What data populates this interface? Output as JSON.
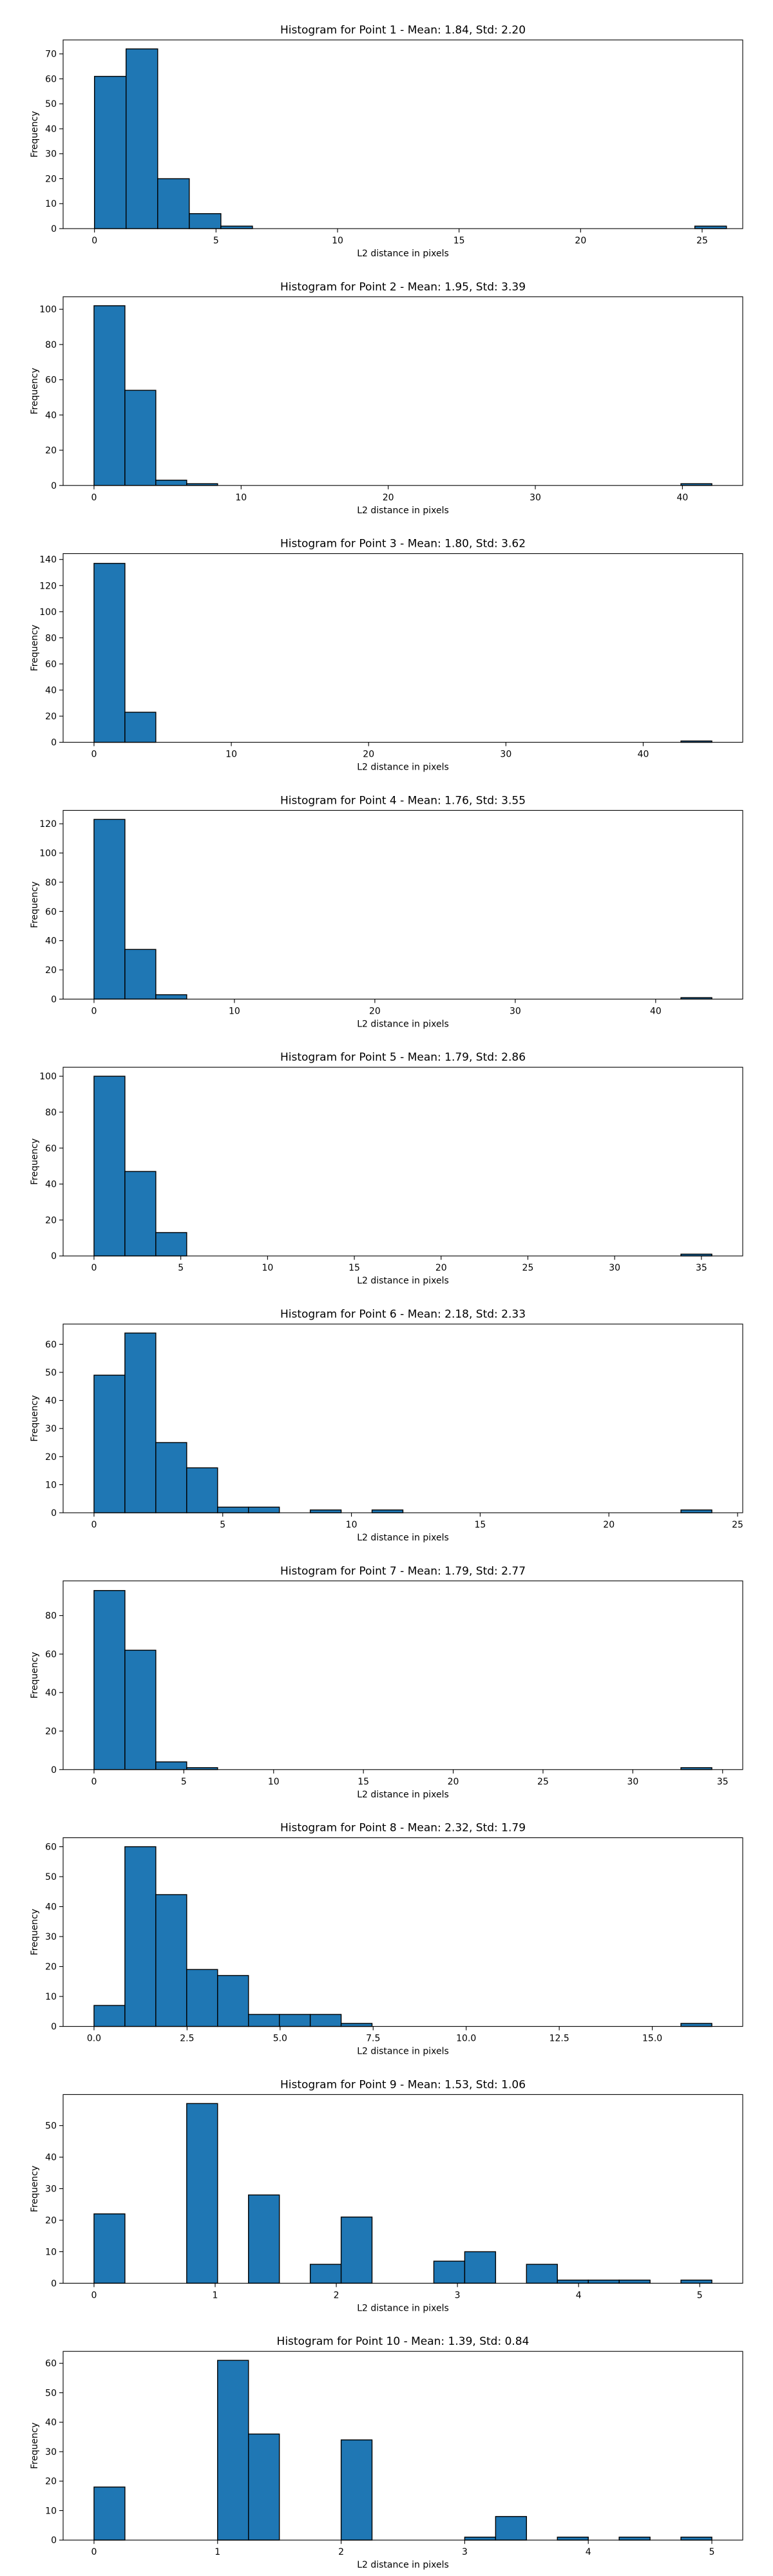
{
  "colors": {
    "bar_fill": "#1f77b4",
    "bar_edge": "#000000",
    "axis": "#000000",
    "background": "#ffffff"
  },
  "chart_data": [
    {
      "type": "bar",
      "title": "Histogram for Point 1 - Mean: 1.84, Std: 2.20",
      "xlabel": "L2 distance in pixels",
      "ylabel": "Frequency",
      "xlim": [
        -1.29,
        26.67
      ],
      "ylim": [
        0,
        75.6
      ],
      "xticks": [
        0,
        5,
        10,
        15,
        20,
        25
      ],
      "yticks": [
        0,
        10,
        20,
        30,
        40,
        50,
        60,
        70
      ],
      "bin_edges": [
        0.0,
        1.3,
        2.6,
        3.9,
        5.2,
        6.5,
        7.8,
        9.1,
        10.4,
        11.7,
        13.0,
        14.3,
        15.6,
        16.9,
        18.2,
        19.5,
        20.8,
        22.1,
        23.4,
        24.7,
        26.0
      ],
      "counts": [
        61,
        72,
        20,
        6,
        1,
        0,
        0,
        0,
        0,
        0,
        0,
        0,
        0,
        0,
        0,
        0,
        0,
        0,
        0,
        1
      ]
    },
    {
      "type": "bar",
      "title": "Histogram for Point 2 - Mean: 1.95, Std: 3.39",
      "xlabel": "L2 distance in pixels",
      "ylabel": "Frequency",
      "xlim": [
        -2.1,
        44.1
      ],
      "ylim": [
        0,
        107.1
      ],
      "xticks": [
        0,
        10,
        20,
        30,
        40
      ],
      "yticks": [
        0,
        20,
        40,
        60,
        80,
        100
      ],
      "bin_edges": [
        0.0,
        2.1,
        4.2,
        6.3,
        8.4,
        10.5,
        12.6,
        14.7,
        16.8,
        18.9,
        21.0,
        23.1,
        25.2,
        27.3,
        29.4,
        31.5,
        33.6,
        35.7,
        37.8,
        39.9,
        42.0
      ],
      "counts": [
        102,
        54,
        3,
        1,
        0,
        0,
        0,
        0,
        0,
        0,
        0,
        0,
        0,
        0,
        0,
        0,
        0,
        0,
        0,
        1
      ]
    },
    {
      "type": "bar",
      "title": "Histogram for Point 3 - Mean: 1.80, Std: 3.62",
      "xlabel": "L2 distance in pixels",
      "ylabel": "Frequency",
      "xlim": [
        -2.25,
        47.25
      ],
      "ylim": [
        0,
        144.5
      ],
      "xticks": [
        0,
        10,
        20,
        30,
        40
      ],
      "yticks": [
        0,
        20,
        40,
        60,
        80,
        100,
        120,
        140
      ],
      "bin_edges": [
        0.0,
        2.25,
        4.5,
        6.75,
        9.0,
        11.25,
        13.5,
        15.75,
        18.0,
        20.25,
        22.5,
        24.75,
        27.0,
        29.25,
        31.5,
        33.75,
        36.0,
        38.25,
        40.5,
        42.75,
        45.0
      ],
      "counts": [
        137,
        23,
        0,
        0,
        0,
        0,
        0,
        0,
        0,
        0,
        0,
        0,
        0,
        0,
        0,
        0,
        0,
        0,
        0,
        1
      ]
    },
    {
      "type": "bar",
      "title": "Histogram for Point 4 - Mean: 1.76, Std: 3.55",
      "xlabel": "L2 distance in pixels",
      "ylabel": "Frequency",
      "xlim": [
        -2.2,
        46.2
      ],
      "ylim": [
        0,
        129.15
      ],
      "xticks": [
        0,
        10,
        20,
        30,
        40
      ],
      "yticks": [
        0,
        20,
        40,
        60,
        80,
        100,
        120
      ],
      "bin_edges": [
        0.0,
        2.2,
        4.4,
        6.6,
        8.8,
        11.0,
        13.2,
        15.4,
        17.6,
        19.8,
        22.0,
        24.2,
        26.4,
        28.6,
        30.8,
        33.0,
        35.2,
        37.4,
        39.6,
        41.8,
        44.0
      ],
      "counts": [
        123,
        34,
        3,
        0,
        0,
        0,
        0,
        0,
        0,
        0,
        0,
        0,
        0,
        0,
        0,
        0,
        0,
        0,
        0,
        1
      ]
    },
    {
      "type": "bar",
      "title": "Histogram for Point 5 - Mean: 1.79, Std: 2.86",
      "xlabel": "L2 distance in pixels",
      "ylabel": "Frequency",
      "xlim": [
        -1.78,
        37.38
      ],
      "ylim": [
        0,
        105.0
      ],
      "xticks": [
        0,
        5,
        10,
        15,
        20,
        25,
        30,
        35
      ],
      "yticks": [
        0,
        20,
        40,
        60,
        80,
        100
      ],
      "bin_edges": [
        0.0,
        1.78,
        3.56,
        5.34,
        7.12,
        8.9,
        10.68,
        12.46,
        14.24,
        16.02,
        17.8,
        19.58,
        21.36,
        23.14,
        24.92,
        26.7,
        28.48,
        30.26,
        32.04,
        33.82,
        35.6
      ],
      "counts": [
        100,
        47,
        13,
        0,
        0,
        0,
        0,
        0,
        0,
        0,
        0,
        0,
        0,
        0,
        0,
        0,
        0,
        0,
        0,
        1
      ]
    },
    {
      "type": "bar",
      "title": "Histogram for Point 6 - Mean: 2.18, Std: 2.33",
      "xlabel": "L2 distance in pixels",
      "ylabel": "Frequency",
      "xlim": [
        -1.2,
        25.2
      ],
      "ylim": [
        0,
        67.2
      ],
      "xticks": [
        0,
        5,
        10,
        15,
        20,
        25
      ],
      "yticks": [
        0,
        10,
        20,
        30,
        40,
        50,
        60
      ],
      "bin_edges": [
        0.0,
        1.2,
        2.4,
        3.6,
        4.8,
        6.0,
        7.2,
        8.4,
        9.6,
        10.8,
        12.0,
        13.2,
        14.4,
        15.6,
        16.8,
        18.0,
        19.2,
        20.4,
        21.6,
        22.8,
        24.0
      ],
      "counts": [
        49,
        64,
        25,
        16,
        2,
        2,
        0,
        1,
        0,
        1,
        0,
        0,
        0,
        0,
        0,
        0,
        0,
        0,
        0,
        1
      ]
    },
    {
      "type": "bar",
      "title": "Histogram for Point 7 - Mean: 1.79, Std: 2.77",
      "xlabel": "L2 distance in pixels",
      "ylabel": "Frequency",
      "xlim": [
        -1.72,
        36.12
      ],
      "ylim": [
        0,
        98.0
      ],
      "xticks": [
        0,
        5,
        10,
        15,
        20,
        25,
        30,
        35
      ],
      "yticks": [
        0,
        20,
        40,
        60,
        80
      ],
      "bin_edges": [
        0.0,
        1.72,
        3.44,
        5.16,
        6.88,
        8.6,
        10.32,
        12.04,
        13.76,
        15.48,
        17.2,
        18.92,
        20.64,
        22.36,
        24.08,
        25.8,
        27.52,
        29.24,
        30.96,
        32.68,
        34.4
      ],
      "counts": [
        93,
        62,
        4,
        1,
        0,
        0,
        0,
        0,
        0,
        0,
        0,
        0,
        0,
        0,
        0,
        0,
        0,
        0,
        0,
        1
      ]
    },
    {
      "type": "bar",
      "title": "Histogram for Point 8 - Mean: 2.32, Std: 1.79",
      "xlabel": "L2 distance in pixels",
      "ylabel": "Frequency",
      "xlim": [
        -0.83,
        17.43
      ],
      "ylim": [
        0,
        63.0
      ],
      "xticks": [
        0.0,
        2.5,
        5.0,
        7.5,
        10.0,
        12.5,
        15.0
      ],
      "xtick_labels": [
        "0.0",
        "2.5",
        "5.0",
        "7.5",
        "10.0",
        "12.5",
        "15.0"
      ],
      "yticks": [
        0,
        10,
        20,
        30,
        40,
        50,
        60
      ],
      "bin_edges": [
        0.0,
        0.83,
        1.66,
        2.49,
        3.32,
        4.15,
        4.98,
        5.81,
        6.64,
        7.47,
        8.3,
        9.13,
        9.96,
        10.79,
        11.62,
        12.45,
        13.28,
        14.11,
        14.94,
        15.77,
        16.6
      ],
      "counts": [
        7,
        60,
        44,
        19,
        17,
        4,
        4,
        4,
        1,
        0,
        0,
        0,
        0,
        0,
        0,
        0,
        0,
        0,
        0,
        1
      ]
    },
    {
      "type": "bar",
      "title": "Histogram for Point 9 - Mean: 1.53, Std: 1.06",
      "xlabel": "L2 distance in pixels",
      "ylabel": "Frequency",
      "xlim": [
        -0.255,
        5.355
      ],
      "ylim": [
        0,
        59.85
      ],
      "xticks": [
        0,
        1,
        2,
        3,
        4,
        5
      ],
      "yticks": [
        0,
        10,
        20,
        30,
        40,
        50
      ],
      "bin_edges": [
        0.0,
        0.255,
        0.51,
        0.765,
        1.02,
        1.275,
        1.53,
        1.785,
        2.04,
        2.295,
        2.55,
        2.805,
        3.06,
        3.315,
        3.57,
        3.825,
        4.08,
        4.335,
        4.59,
        4.845,
        5.1
      ],
      "counts": [
        22,
        0,
        0,
        57,
        0,
        28,
        0,
        6,
        21,
        0,
        0,
        7,
        10,
        0,
        6,
        1,
        1,
        1,
        0,
        1
      ]
    },
    {
      "type": "bar",
      "title": "Histogram for Point 10 - Mean: 1.39, Std: 0.84",
      "xlabel": "L2 distance in pixels",
      "ylabel": "Frequency",
      "xlim": [
        -0.25,
        5.25
      ],
      "ylim": [
        0,
        64.05
      ],
      "xticks": [
        0,
        1,
        2,
        3,
        4,
        5
      ],
      "yticks": [
        0,
        10,
        20,
        30,
        40,
        50,
        60
      ],
      "bin_edges": [
        0.0,
        0.25,
        0.5,
        0.75,
        1.0,
        1.25,
        1.5,
        1.75,
        2.0,
        2.25,
        2.5,
        2.75,
        3.0,
        3.25,
        3.5,
        3.75,
        4.0,
        4.25,
        4.5,
        4.75,
        5.0
      ],
      "counts": [
        18,
        0,
        0,
        0,
        61,
        36,
        0,
        0,
        34,
        0,
        0,
        0,
        1,
        8,
        0,
        1,
        0,
        1,
        0,
        1
      ]
    }
  ]
}
